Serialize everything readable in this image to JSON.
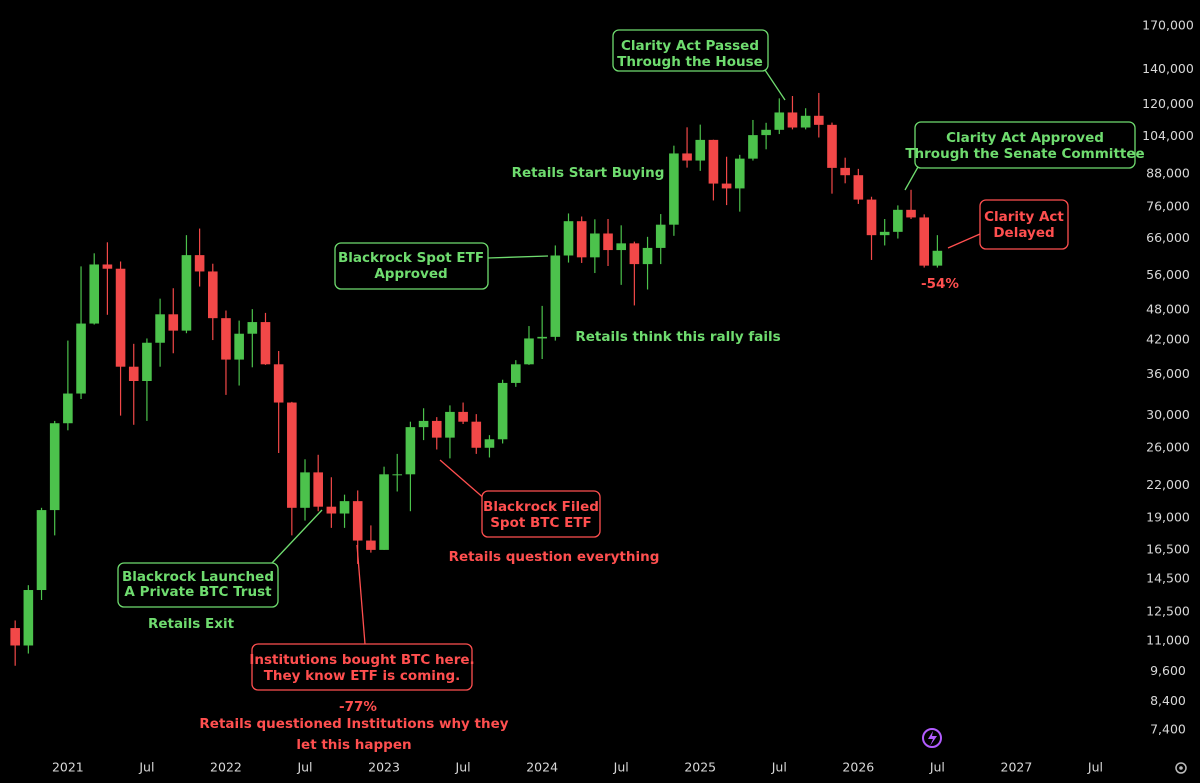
{
  "chart_data": {
    "type": "candlestick",
    "log": true,
    "colors": {
      "up": "#4cc24c",
      "down": "#f24848"
    },
    "x": [
      "2020-09",
      "2020-10",
      "2020-11",
      "2020-12",
      "2021-01",
      "2021-02",
      "2021-03",
      "2021-04",
      "2021-05",
      "2021-06",
      "2021-07",
      "2021-08",
      "2021-09",
      "2021-10",
      "2021-11",
      "2021-12",
      "2022-01",
      "2022-02",
      "2022-03",
      "2022-04",
      "2022-05",
      "2022-06",
      "2022-07",
      "2022-08",
      "2022-09",
      "2022-10",
      "2022-11",
      "2022-12",
      "2023-01",
      "2023-02",
      "2023-03",
      "2023-04",
      "2023-05",
      "2023-06",
      "2023-07",
      "2023-08",
      "2023-09",
      "2023-10",
      "2023-11",
      "2023-12",
      "2024-01",
      "2024-02",
      "2024-03",
      "2024-04",
      "2024-05",
      "2024-06",
      "2024-07",
      "2024-08",
      "2024-09",
      "2024-10",
      "2024-11",
      "2024-12",
      "2025-01",
      "2025-02",
      "2025-03",
      "2025-04",
      "2025-05",
      "2025-06",
      "2025-07",
      "2025-08",
      "2025-09",
      "2025-10",
      "2025-11",
      "2025-12",
      "2026-01",
      "2026-02",
      "2026-03",
      "2026-04",
      "2026-05",
      "2026-06",
      "2026-07"
    ],
    "open": [
      11650,
      10780,
      13800,
      19700,
      29000,
      33100,
      45200,
      58800,
      57700,
      37300,
      35000,
      41500,
      47100,
      43800,
      61300,
      57000,
      46300,
      38500,
      43200,
      45500,
      37700,
      31800,
      19900,
      23300,
      20000,
      19400,
      20500,
      17200,
      16500,
      23100,
      23100,
      28500,
      29300,
      27200,
      30500,
      29200,
      26000,
      27000,
      34700,
      37700,
      42300,
      42600,
      61200,
      71300,
      60700,
      67500,
      62700,
      64600,
      58900,
      63300,
      70200,
      96400,
      93400,
      102400,
      84300,
      82500,
      94200,
      104600,
      107100,
      115700,
      108200,
      114000,
      109500,
      90400,
      87500,
      78500,
      67000,
      68000,
      75000,
      72500,
      58500
    ],
    "high": [
      12050,
      14100,
      19900,
      29300,
      41900,
      58300,
      61800,
      64900,
      59600,
      41300,
      42300,
      50500,
      52900,
      67000,
      69000,
      59000,
      47900,
      45800,
      48200,
      47400,
      40000,
      31900,
      24700,
      25200,
      22800,
      21100,
      21500,
      18400,
      23900,
      25300,
      29200,
      31000,
      29800,
      31400,
      31800,
      30200,
      27500,
      35200,
      38400,
      44700,
      48900,
      64000,
      73800,
      72800,
      71900,
      72000,
      70000,
      65100,
      66500,
      73600,
      99800,
      108300,
      109600,
      102500,
      95000,
      95800,
      111900,
      110500,
      123200,
      124500,
      117900,
      126200,
      110600,
      94600,
      90000,
      79500,
      72000,
      76500,
      82000,
      73500,
      67000
    ],
    "low": [
      9850,
      10400,
      13200,
      17600,
      28100,
      32300,
      45000,
      47000,
      30000,
      28800,
      29300,
      37300,
      39600,
      43300,
      53300,
      42000,
      32900,
      34300,
      37200,
      37600,
      25400,
      17600,
      18800,
      19600,
      18200,
      18200,
      15500,
      16300,
      16500,
      21400,
      19600,
      26900,
      25800,
      24800,
      28900,
      25300,
      24900,
      26500,
      34100,
      37600,
      38600,
      41900,
      59300,
      59200,
      56600,
      58400,
      53700,
      49000,
      52600,
      58900,
      66800,
      90500,
      89200,
      78200,
      76600,
      74400,
      93400,
      98200,
      105100,
      107300,
      107300,
      103500,
      80600,
      84400,
      77000,
      60000,
      64000,
      66000,
      72000,
      58000,
      58000
    ],
    "close": [
      10780,
      13800,
      19700,
      29000,
      33100,
      45200,
      58800,
      57700,
      37300,
      35000,
      41500,
      47100,
      43800,
      61300,
      57000,
      46300,
      38500,
      43200,
      45500,
      37700,
      31800,
      19900,
      23300,
      20000,
      19400,
      20500,
      17200,
      16500,
      23100,
      23100,
      28500,
      29300,
      27200,
      30500,
      29200,
      26000,
      27000,
      34700,
      37700,
      42300,
      42600,
      61200,
      71300,
      60700,
      67500,
      62700,
      64600,
      58900,
      63300,
      70200,
      96400,
      93400,
      102400,
      84300,
      82500,
      94200,
      104600,
      107100,
      115700,
      108200,
      114000,
      109500,
      90400,
      87500,
      78500,
      67000,
      68000,
      75000,
      72500,
      58500,
      62500
    ],
    "xlim": [
      "2020-08",
      "2027-10"
    ],
    "xticks": [
      {
        "value": "2021-01",
        "label": "2021"
      },
      {
        "value": "2021-07",
        "label": "Jul"
      },
      {
        "value": "2022-01",
        "label": "2022"
      },
      {
        "value": "2022-07",
        "label": "Jul"
      },
      {
        "value": "2023-01",
        "label": "2023"
      },
      {
        "value": "2023-07",
        "label": "Jul"
      },
      {
        "value": "2024-01",
        "label": "2024"
      },
      {
        "value": "2024-07",
        "label": "Jul"
      },
      {
        "value": "2025-01",
        "label": "2025"
      },
      {
        "value": "2025-07",
        "label": "Jul"
      },
      {
        "value": "2026-01",
        "label": "2026"
      },
      {
        "value": "2026-07",
        "label": "Jul"
      },
      {
        "value": "2027-01",
        "label": "2027"
      },
      {
        "value": "2027-07",
        "label": "Jul"
      }
    ],
    "ylim": [
      6620,
      190900
    ],
    "yticks": [
      {
        "value": 7400,
        "label": "7,400"
      },
      {
        "value": 8400,
        "label": "8,400"
      },
      {
        "value": 9600,
        "label": "9,600"
      },
      {
        "value": 11000,
        "label": "11,000"
      },
      {
        "value": 12500,
        "label": "12,500"
      },
      {
        "value": 14500,
        "label": "14,500"
      },
      {
        "value": 16500,
        "label": "16,500"
      },
      {
        "value": 19000,
        "label": "19,000"
      },
      {
        "value": 22000,
        "label": "22,000"
      },
      {
        "value": 26000,
        "label": "26,000"
      },
      {
        "value": 30000,
        "label": "30,000"
      },
      {
        "value": 36000,
        "label": "36,000"
      },
      {
        "value": 42000,
        "label": "42,000"
      },
      {
        "value": 48000,
        "label": "48,000"
      },
      {
        "value": 56000,
        "label": "56,000"
      },
      {
        "value": 66000,
        "label": "66,000"
      },
      {
        "value": 76000,
        "label": "76,000"
      },
      {
        "value": 88000,
        "label": "88,000"
      },
      {
        "value": 104000,
        "label": "104,000"
      },
      {
        "value": 120000,
        "label": "120,000"
      },
      {
        "value": 140000,
        "label": "140,000"
      },
      {
        "value": 170000,
        "label": "170,000"
      }
    ],
    "annotations": [
      {
        "lines": [
          "Clarity Act Passed",
          "Through the House"
        ],
        "color": "#6fdc6f"
      },
      {
        "lines": [
          "Clarity Act Approved",
          "Through the Senate Committee"
        ],
        "color": "#6fdc6f"
      },
      {
        "lines": [
          "Clarity Act",
          "Delayed"
        ],
        "color": "#ff4f4f"
      },
      {
        "lines": [
          "-54%"
        ],
        "color": "#ff4f4f"
      },
      {
        "lines": [
          "Retails Start Buying"
        ],
        "color": "#6fdc6f"
      },
      {
        "lines": [
          "Blackrock Spot ETF",
          "Approved"
        ],
        "color": "#6fdc6f"
      },
      {
        "lines": [
          "Retails think this rally fails"
        ],
        "color": "#6fdc6f"
      },
      {
        "lines": [
          "Blackrock Filed",
          "Spot BTC ETF"
        ],
        "color": "#ff4f4f"
      },
      {
        "lines": [
          "Retails question everything"
        ],
        "color": "#ff4f4f"
      },
      {
        "lines": [
          "Blackrock Launched",
          "A Private BTC Trust"
        ],
        "color": "#6fdc6f"
      },
      {
        "lines": [
          "Retails Exit"
        ],
        "color": "#6fdc6f"
      },
      {
        "lines": [
          "Institutions bought BTC here.",
          "They know ETF is coming."
        ],
        "color": "#ff4f4f"
      },
      {
        "lines": [
          "-77%"
        ],
        "color": "#ff4f4f"
      },
      {
        "lines": [
          "Retails questioned Institutions why they",
          "let this happen"
        ],
        "color": "#ff4f4f"
      }
    ]
  }
}
